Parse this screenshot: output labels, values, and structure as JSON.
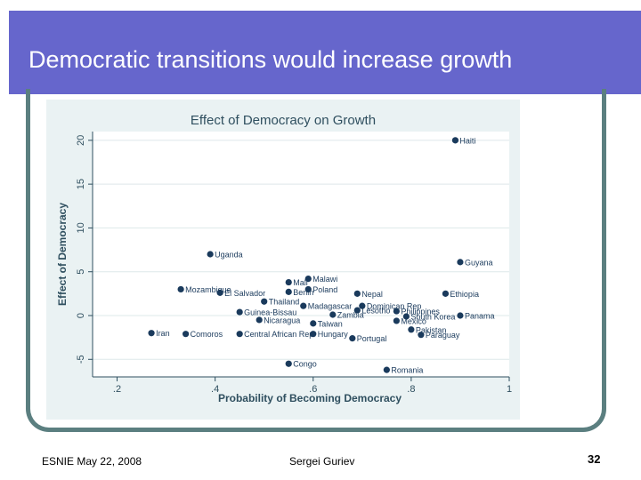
{
  "slide": {
    "title": "Democratic transitions would increase growth",
    "footer_left": "ESNIE May 22, 2008",
    "footer_center": "Sergei Guriev",
    "page_number": "32"
  },
  "colors": {
    "header": "#6666cc",
    "frame": "#5b7f80",
    "chart_bg": "#eaf2f3",
    "marker": "#1a3a5c",
    "text": "#2f4f5f"
  },
  "chart_data": {
    "type": "scatter",
    "title": "Effect of Democracy on Growth",
    "xlabel": "Probability of Becoming Democracy",
    "ylabel": "Effect of Democracy",
    "xlim": [
      0.15,
      1.0
    ],
    "ylim": [
      -7,
      21
    ],
    "xticks": [
      ".2",
      ".4",
      ".6",
      ".8",
      "1"
    ],
    "xtick_values": [
      0.2,
      0.4,
      0.6,
      0.8,
      1.0
    ],
    "yticks": [
      "-5",
      "0",
      "5",
      "10",
      "15",
      "20"
    ],
    "ytick_values": [
      -5,
      0,
      5,
      10,
      15,
      20
    ],
    "grid": "horizontal",
    "points": [
      {
        "label": "Haiti",
        "x": 0.89,
        "y": 20.0
      },
      {
        "label": "Uganda",
        "x": 0.39,
        "y": 7.0
      },
      {
        "label": "Guyana",
        "x": 0.9,
        "y": 6.1
      },
      {
        "label": "Malawi",
        "x": 0.59,
        "y": 4.2
      },
      {
        "label": "Mali",
        "x": 0.55,
        "y": 3.8
      },
      {
        "label": "Poland",
        "x": 0.59,
        "y": 3.0
      },
      {
        "label": "Mozambique",
        "x": 0.33,
        "y": 3.0
      },
      {
        "label": "El Salvador",
        "x": 0.41,
        "y": 2.6
      },
      {
        "label": "Benin",
        "x": 0.55,
        "y": 2.7
      },
      {
        "label": "Nepal",
        "x": 0.69,
        "y": 2.5
      },
      {
        "label": "Ethiopia",
        "x": 0.87,
        "y": 2.5
      },
      {
        "label": "Thailand",
        "x": 0.5,
        "y": 1.6
      },
      {
        "label": "Madagascar",
        "x": 0.58,
        "y": 1.1
      },
      {
        "label": "Dominican Rep",
        "x": 0.7,
        "y": 1.1
      },
      {
        "label": "Lesotho",
        "x": 0.69,
        "y": 0.6
      },
      {
        "label": "Philippines",
        "x": 0.77,
        "y": 0.5
      },
      {
        "label": "Guinea-Bissau",
        "x": 0.45,
        "y": 0.4
      },
      {
        "label": "Zambia",
        "x": 0.64,
        "y": 0.1
      },
      {
        "label": "South Korea",
        "x": 0.79,
        "y": -0.1
      },
      {
        "label": "Panama",
        "x": 0.9,
        "y": 0.0
      },
      {
        "label": "Nicaragua",
        "x": 0.49,
        "y": -0.5
      },
      {
        "label": "Taiwan",
        "x": 0.6,
        "y": -0.9
      },
      {
        "label": "Mexico",
        "x": 0.77,
        "y": -0.6
      },
      {
        "label": "Pakistan",
        "x": 0.8,
        "y": -1.6
      },
      {
        "label": "Iran",
        "x": 0.27,
        "y": -2.0
      },
      {
        "label": "Comoros",
        "x": 0.34,
        "y": -2.1
      },
      {
        "label": "Central African Rep",
        "x": 0.45,
        "y": -2.1
      },
      {
        "label": "Hungary",
        "x": 0.6,
        "y": -2.1
      },
      {
        "label": "Paraguay",
        "x": 0.82,
        "y": -2.2
      },
      {
        "label": "Portugal",
        "x": 0.68,
        "y": -2.6
      },
      {
        "label": "Congo",
        "x": 0.55,
        "y": -5.5
      },
      {
        "label": "Romania",
        "x": 0.75,
        "y": -6.2
      }
    ]
  }
}
